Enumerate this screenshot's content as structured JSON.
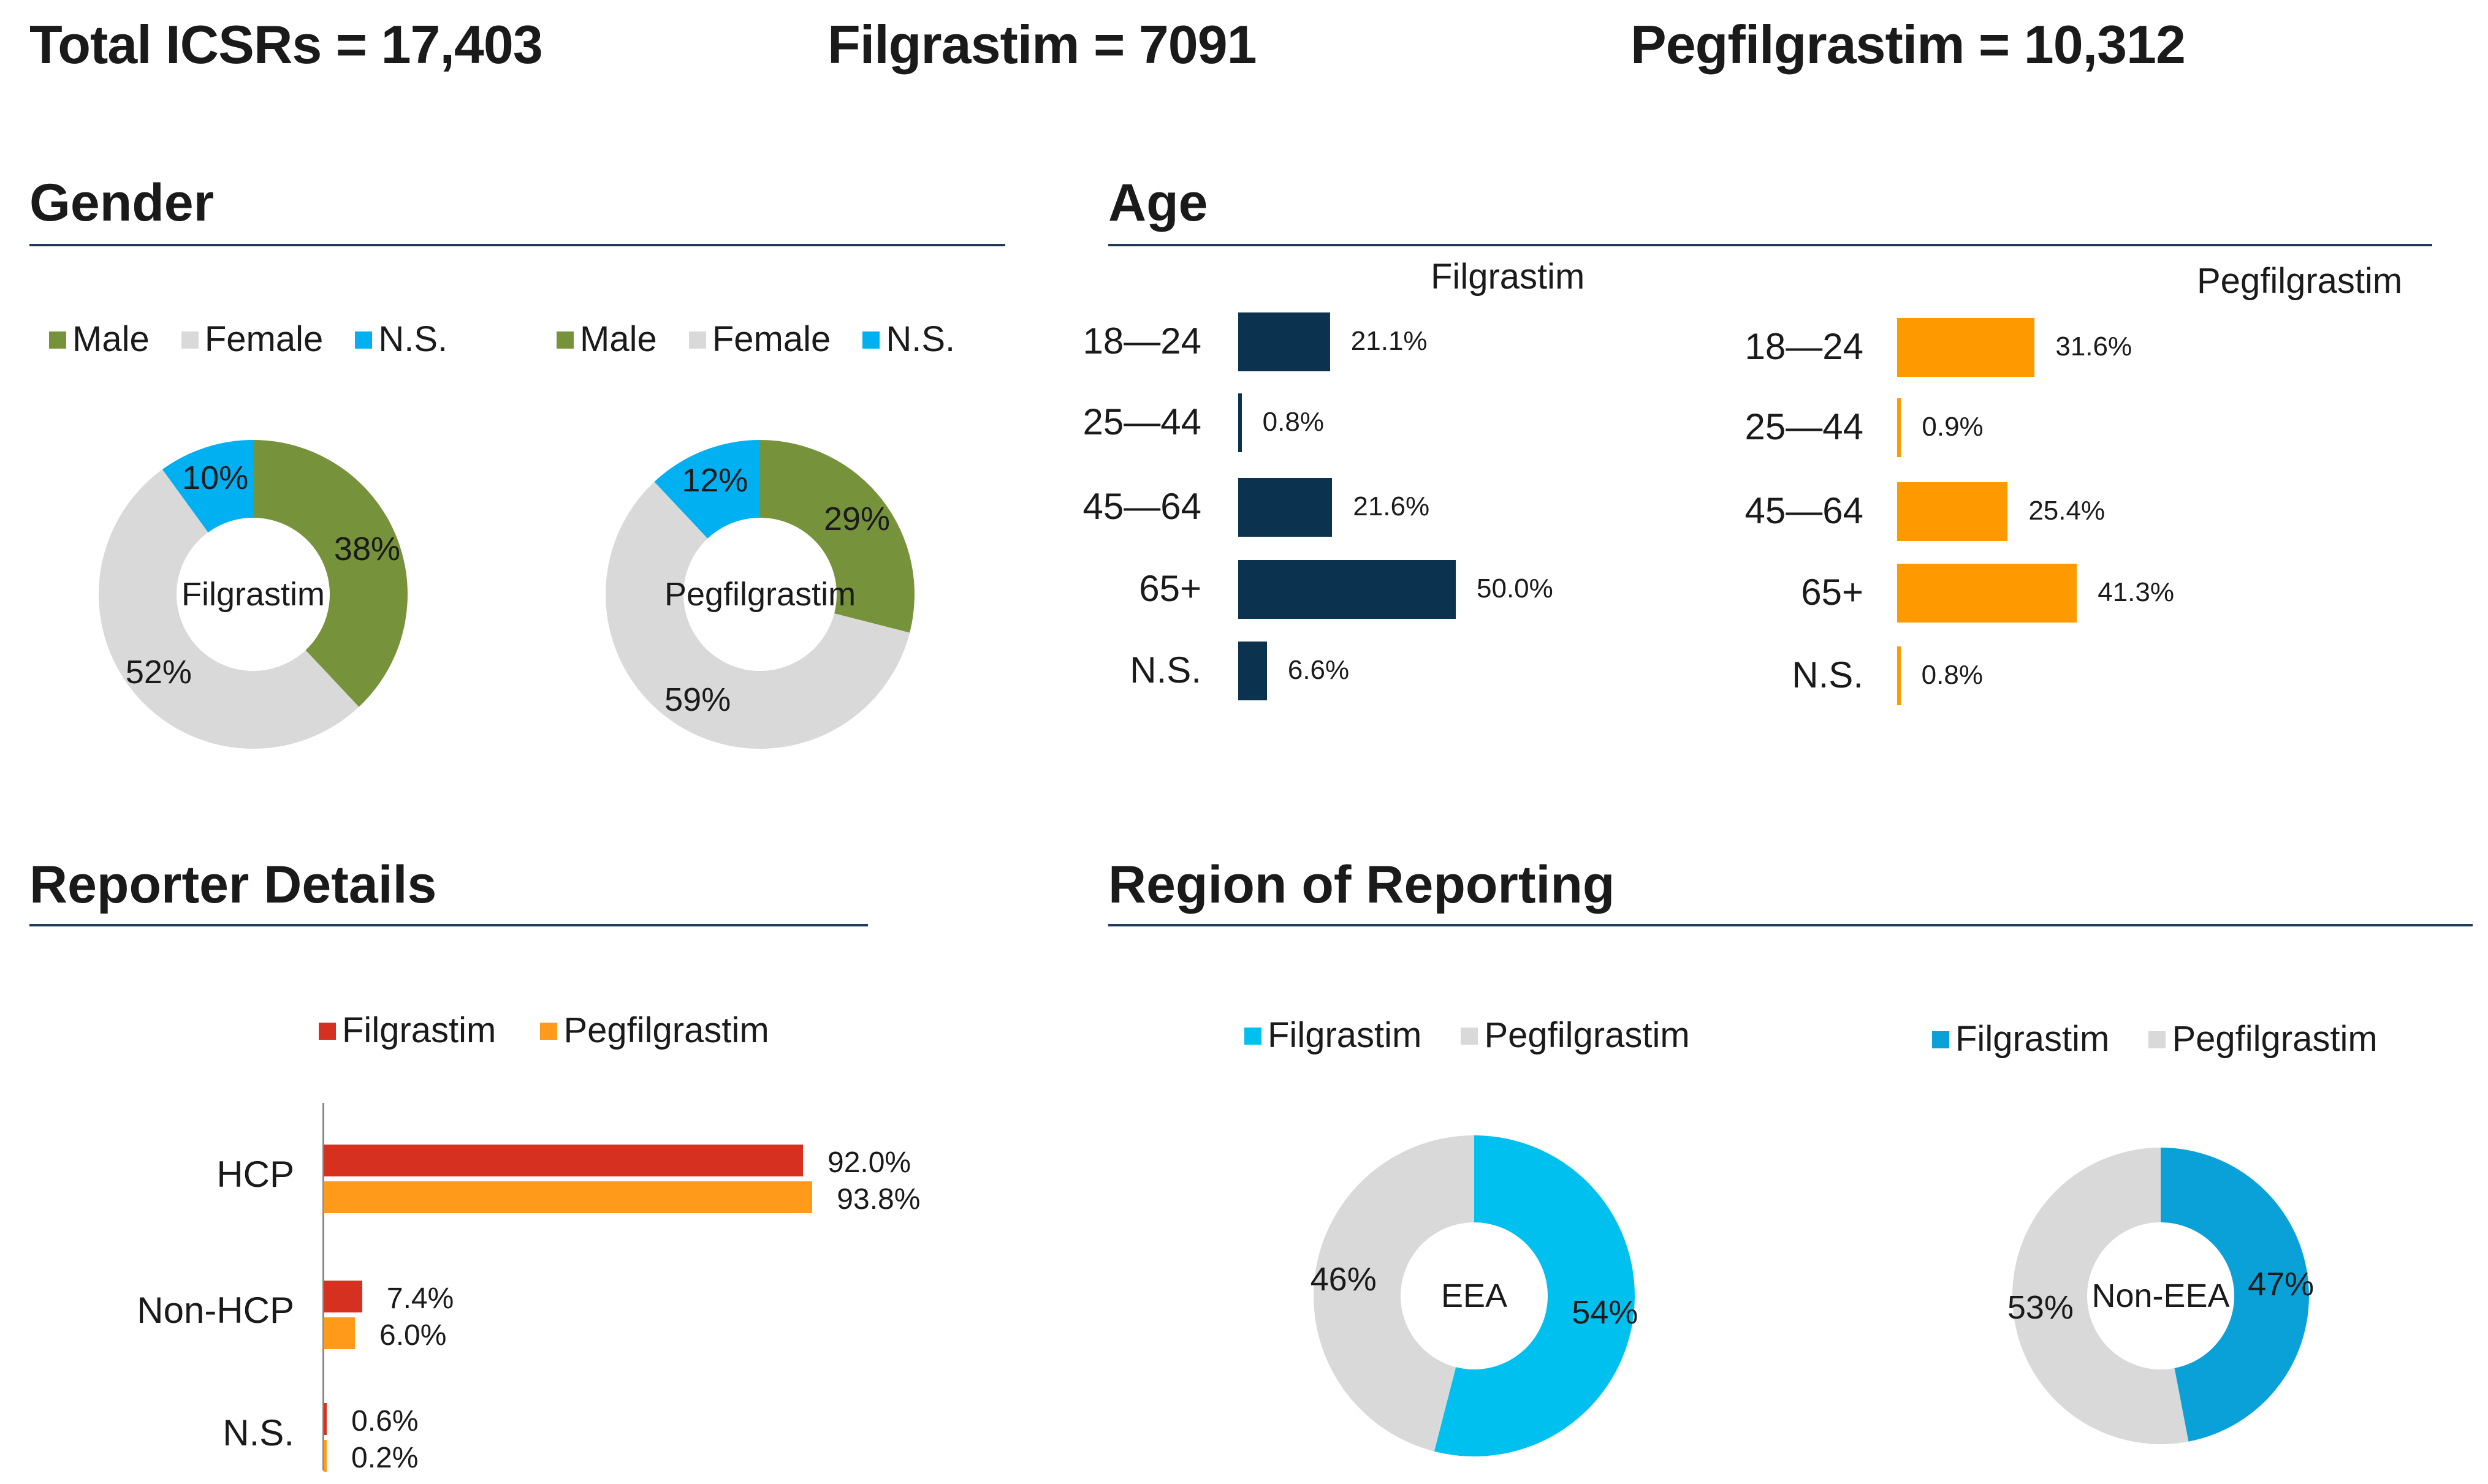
{
  "header": {
    "total": "Total ICSRs = 17,403",
    "filgrastim": "Filgrastim = 7091",
    "pegfilgrastim": "Pegfilgrastim = 10,312"
  },
  "colors": {
    "male": "#76933c",
    "female": "#d9d9d9",
    "ns": "#00b0f0",
    "age_fil": "#0b3350",
    "age_peg": "#ff9900",
    "rep_fil": "#d63020",
    "rep_peg": "#ff9a1a",
    "region_eea": "#00c0f0",
    "region_noneea": "#0aa0d8",
    "region_grey": "#d9d9d9",
    "rule": "#1f3b57"
  },
  "sections": {
    "gender": "Gender",
    "age": "Age",
    "reporter": "Reporter Details",
    "region": "Region of Reporting"
  },
  "chart_data": [
    {
      "type": "pie",
      "id": "gender-filgrastim",
      "center_label": "Filgrastim",
      "legend": [
        "Male",
        "Female",
        "N.S."
      ],
      "labels": [
        "Male",
        "Female",
        "N.S."
      ],
      "values": [
        38,
        52,
        10
      ],
      "value_labels": [
        "38%",
        "52%",
        "10%"
      ]
    },
    {
      "type": "pie",
      "id": "gender-pegfilgrastim",
      "center_label": "Pegfilgrastim",
      "legend": [
        "Male",
        "Female",
        "N.S."
      ],
      "labels": [
        "Male",
        "Female",
        "N.S."
      ],
      "values": [
        29,
        59,
        12
      ],
      "value_labels": [
        "29%",
        "59%",
        "12%"
      ]
    },
    {
      "type": "bar",
      "id": "age-filgrastim",
      "title": "Filgrastim",
      "categories": [
        "18—24",
        "25—44",
        "45—64",
        "65+",
        "N.S."
      ],
      "values": [
        21.1,
        0.8,
        21.6,
        50.0,
        6.6
      ],
      "value_labels": [
        "21.1%",
        "0.8%",
        "21.6%",
        "50.0%",
        "6.6%"
      ]
    },
    {
      "type": "bar",
      "id": "age-pegfilgrastim",
      "title": "Pegfilgrastim",
      "categories": [
        "18—24",
        "25—44",
        "45—64",
        "65+",
        "N.S."
      ],
      "values": [
        31.6,
        0.9,
        25.4,
        41.3,
        0.8
      ],
      "value_labels": [
        "31.6%",
        "0.9%",
        "25.4%",
        "41.3%",
        "0.8%"
      ]
    },
    {
      "type": "bar",
      "id": "reporter",
      "categories": [
        "HCP",
        "Non-HCP",
        "N.S."
      ],
      "series": [
        {
          "name": "Filgrastim",
          "values": [
            92.0,
            7.4,
            0.6
          ],
          "value_labels": [
            "92.0%",
            "7.4%",
            "0.6%"
          ]
        },
        {
          "name": "Pegfilgrastim",
          "values": [
            93.8,
            6.0,
            0.2
          ],
          "value_labels": [
            "93.8%",
            "6.0%",
            "0.2%"
          ]
        }
      ]
    },
    {
      "type": "pie",
      "id": "region-eea",
      "center_label": "EEA",
      "legend": [
        "Filgrastim",
        "Pegfilgrastim"
      ],
      "labels": [
        "Filgrastim",
        "Pegfilgrastim"
      ],
      "values": [
        54,
        46
      ],
      "value_labels": [
        "54%",
        "46%"
      ]
    },
    {
      "type": "pie",
      "id": "region-noneea",
      "center_label": "Non-EEA",
      "legend": [
        "Filgrastim",
        "Pegfilgrastim"
      ],
      "labels": [
        "Filgrastim",
        "Pegfilgrastim"
      ],
      "values": [
        47,
        53
      ],
      "value_labels": [
        "47%",
        "53%"
      ]
    }
  ]
}
